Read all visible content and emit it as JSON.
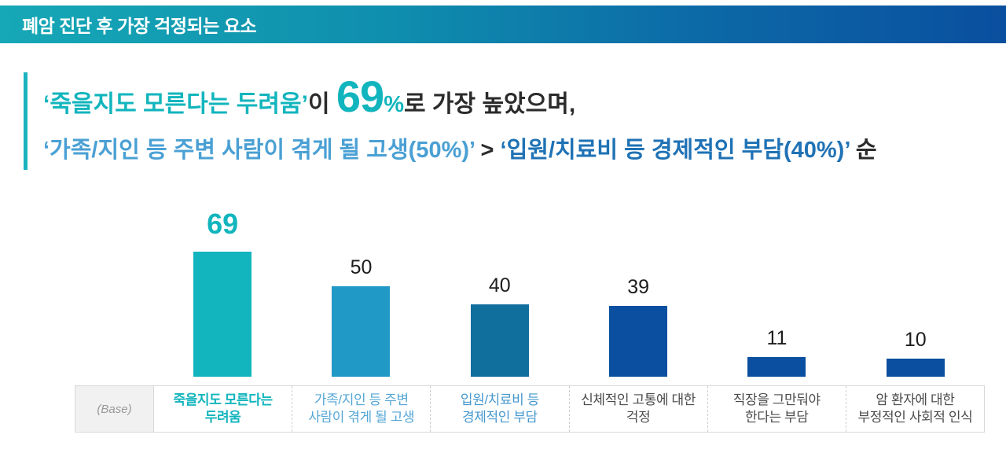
{
  "header": {
    "title": "폐암 진단 후 가장 걱정되는 요소"
  },
  "summary": {
    "l1_highlight": "‘죽을지도 모른다는 두려움’",
    "l1_conn": "이 ",
    "l1_value": "69",
    "l1_pct": "%",
    "l1_rest": "로 가장 높았으며,",
    "l2_family": "‘가족/지인 등 주변 사람이 겪게 될 고생(50%)’",
    "l2_gt": " > ",
    "l2_hospital": "‘입원/치료비 등 경제적인 부담(40%)’",
    "l2_rest": " 순"
  },
  "chart_data": {
    "type": "bar",
    "title": "폐암 진단 후 가장 걱정되는 요소",
    "base_label": "(Base)",
    "categories": [
      "죽을지도 모른다는\n두려움",
      "가족/지인 등 주변\n사람이 겪게 될 고생",
      "입원/치료비 등\n경제적인 부담",
      "신체적인 고통에 대한\n걱정",
      "직장을 그만둬야\n한다는 부담",
      "암 환자에 대한\n부정적인 사회적 인식"
    ],
    "values": [
      69,
      50,
      40,
      39,
      11,
      10
    ],
    "unit": "%",
    "ylim": [
      0,
      75
    ],
    "grid": false,
    "legend": false,
    "emphasis_index": 0,
    "bar_colors": [
      "#12b5bd",
      "#2199c6",
      "#116f9d",
      "#0b4fa0",
      "#0b4fa0",
      "#0b4fa0"
    ],
    "label_colors": [
      "#12b5bd",
      "#55a7d6",
      "#4597ce",
      "#4b4b4b",
      "#4b4b4b",
      "#4b4b4b"
    ],
    "value_label_colors": [
      "#12b5bd",
      "#1d1d1d",
      "#1d1d1d",
      "#1d1d1d",
      "#1d1d1d",
      "#1d1d1d"
    ]
  }
}
